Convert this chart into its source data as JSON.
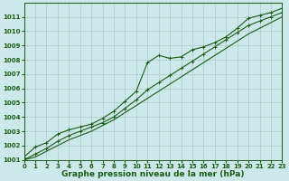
{
  "x": [
    0,
    1,
    2,
    3,
    4,
    5,
    6,
    7,
    8,
    9,
    10,
    11,
    12,
    13,
    14,
    15,
    16,
    17,
    18,
    19,
    20,
    21,
    22,
    23
  ],
  "line1": [
    1001.2,
    1001.9,
    1002.2,
    1002.8,
    1003.1,
    1003.3,
    1003.5,
    1003.9,
    1004.4,
    1005.1,
    1005.8,
    1007.8,
    1008.3,
    1008.1,
    1008.2,
    1008.7,
    1008.9,
    1009.2,
    1009.6,
    1010.2,
    1010.9,
    1011.1,
    1011.3,
    1011.6
  ],
  "line2": [
    1001.0,
    1001.4,
    1001.8,
    1002.3,
    1002.7,
    1003.0,
    1003.3,
    1003.6,
    1004.0,
    1004.6,
    1005.2,
    1005.9,
    1006.4,
    1006.9,
    1007.4,
    1007.9,
    1008.4,
    1008.9,
    1009.4,
    1009.9,
    1010.4,
    1010.7,
    1011.0,
    1011.3
  ],
  "line3": [
    1001.0,
    1001.2,
    1001.6,
    1002.0,
    1002.4,
    1002.7,
    1003.0,
    1003.4,
    1003.8,
    1004.3,
    1004.8,
    1005.3,
    1005.8,
    1006.3,
    1006.8,
    1007.3,
    1007.8,
    1008.3,
    1008.8,
    1009.3,
    1009.8,
    1010.2,
    1010.6,
    1011.0
  ],
  "ylim": [
    1001,
    1012
  ],
  "xlim": [
    0,
    23
  ],
  "yticks": [
    1001,
    1002,
    1003,
    1004,
    1005,
    1006,
    1007,
    1008,
    1009,
    1010,
    1011
  ],
  "xticks": [
    0,
    1,
    2,
    3,
    4,
    5,
    6,
    7,
    8,
    9,
    10,
    11,
    12,
    13,
    14,
    15,
    16,
    17,
    18,
    19,
    20,
    21,
    22,
    23
  ],
  "xlabel": "Graphe pression niveau de la mer (hPa)",
  "line_color": "#1a5c1a",
  "bg_color": "#cce8e8",
  "grid_color": "#b0c8c8",
  "marker": "+",
  "markersize": 3,
  "linewidth": 0.8,
  "tick_fontsize": 5,
  "xlabel_fontsize": 6.5
}
